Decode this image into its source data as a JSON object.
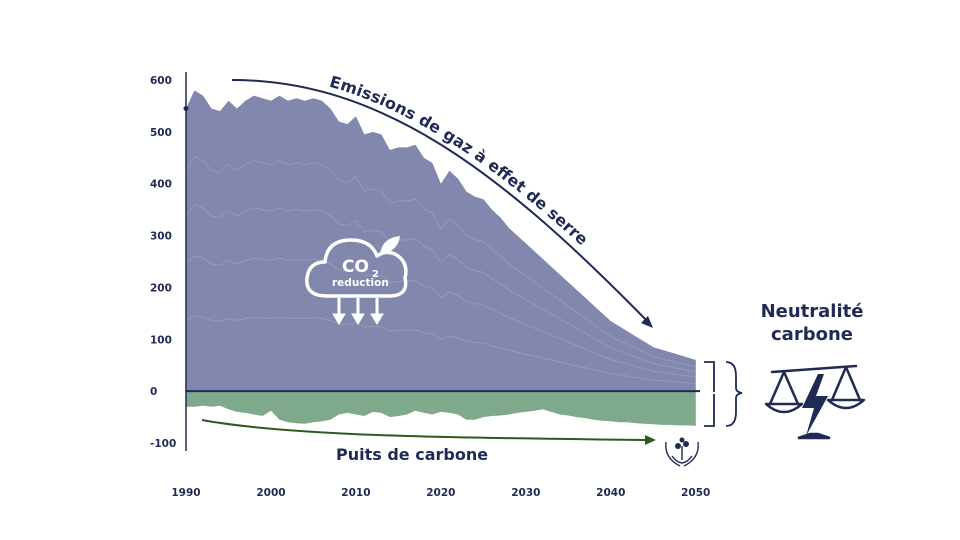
{
  "chart_data": {
    "type": "area",
    "x": [
      1990,
      1991,
      1992,
      1993,
      1994,
      1995,
      1996,
      1997,
      1998,
      1999,
      2000,
      2001,
      2002,
      2003,
      2004,
      2005,
      2006,
      2007,
      2008,
      2009,
      2010,
      2011,
      2012,
      2013,
      2014,
      2015,
      2016,
      2017,
      2018,
      2019,
      2020,
      2021,
      2022,
      2023,
      2024,
      2025,
      2026,
      2027,
      2028,
      2029,
      2030,
      2031,
      2032,
      2033,
      2034,
      2035,
      2036,
      2037,
      2038,
      2039,
      2040,
      2041,
      2042,
      2043,
      2044,
      2045,
      2046,
      2047,
      2048,
      2049,
      2050
    ],
    "series": [
      {
        "values": [
          545,
          580,
          570,
          545,
          540,
          560,
          545,
          560,
          570,
          565,
          560,
          570,
          560,
          565,
          560,
          565,
          560,
          545,
          520,
          515,
          530,
          495,
          500,
          495,
          465,
          470,
          470,
          475,
          450,
          440,
          400,
          425,
          410,
          385,
          375,
          370,
          350,
          335,
          315,
          300,
          285,
          270,
          255,
          240,
          225,
          210,
          195,
          180,
          165,
          150,
          135,
          125,
          115,
          105,
          95,
          85,
          80,
          75,
          70,
          65,
          60
        ]
      },
      {
        "values": [
          -30,
          -30,
          -28,
          -30,
          -28,
          -35,
          -40,
          -42,
          -45,
          -48,
          -38,
          -55,
          -60,
          -62,
          -63,
          -60,
          -58,
          -55,
          -45,
          -42,
          -45,
          -48,
          -40,
          -42,
          -50,
          -48,
          -45,
          -38,
          -42,
          -45,
          -40,
          -42,
          -45,
          -55,
          -55,
          -50,
          -48,
          -47,
          -45,
          -42,
          -40,
          -38,
          -35,
          -40,
          -45,
          -47,
          -50,
          -52,
          -55,
          -57,
          -58,
          -60,
          -60,
          -62,
          -63,
          -64,
          -65,
          -65,
          -66,
          -66,
          -67
        ]
      }
    ],
    "xticks": [
      1990,
      2000,
      2010,
      2020,
      2030,
      2040,
      2050
    ],
    "yticks": [
      600,
      500,
      400,
      300,
      200,
      100,
      0,
      -100
    ],
    "xlim": [
      1990,
      2050.5
    ],
    "ylim": [
      -100,
      600
    ],
    "annotations": {
      "emissions": "Emissions de gaz à effet de serre",
      "sinks": "Puits de carbone",
      "co2_main": "CO",
      "co2_sub": "2",
      "co2_reduction": "reduction",
      "neutrality_line1": "Neutralité",
      "neutrality_line2": "carbone"
    },
    "colors": {
      "emissions": "#8287ad",
      "sinks": "#7ea98a",
      "navy": "#1f2a55",
      "sink_arrow": "#2f5a1f"
    },
    "icons": [
      "cloud-icon",
      "leaf-icon",
      "down-arrow-icon",
      "hands-plant-icon",
      "balance-scale-icon",
      "lightning-icon"
    ]
  }
}
